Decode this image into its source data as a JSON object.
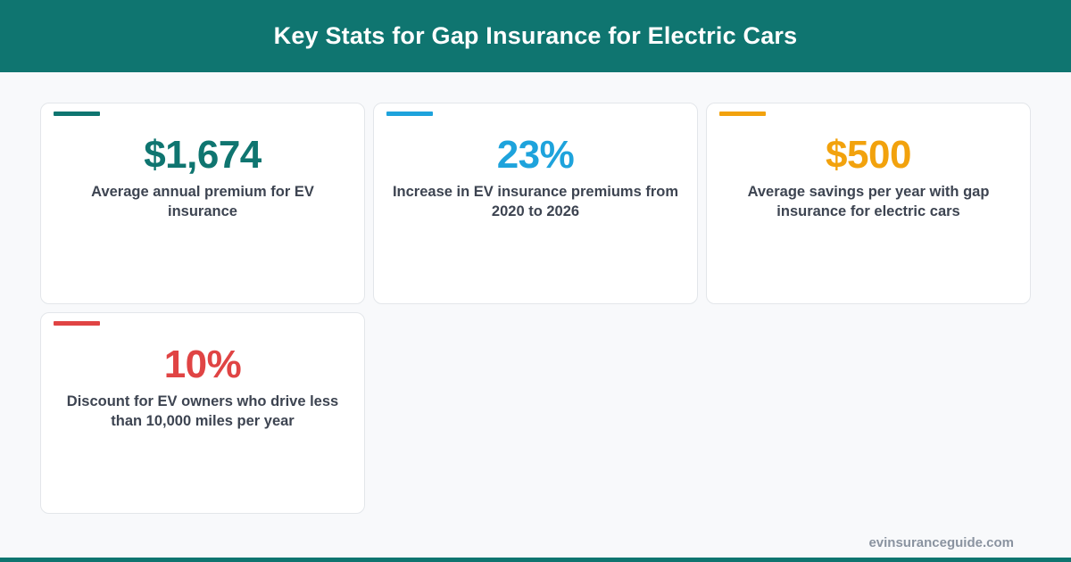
{
  "header": {
    "title": "Key Stats for Gap Insurance for Electric Cars"
  },
  "colors": {
    "brand": "#0f7570",
    "blue": "#1ea3dc",
    "orange": "#f2a20d",
    "red": "#e04444"
  },
  "stats": [
    {
      "value": "$1,674",
      "description": "Average annual premium for EV insurance"
    },
    {
      "value": "23%",
      "description": "Increase in EV insurance premiums from 2020 to 2026"
    },
    {
      "value": "$500",
      "description": "Average savings per year with gap insurance for electric cars"
    },
    {
      "value": "10%",
      "description": "Discount for EV owners who drive less than 10,000 miles per year"
    }
  ],
  "footer": {
    "site": "evinsuranceguide.com"
  }
}
